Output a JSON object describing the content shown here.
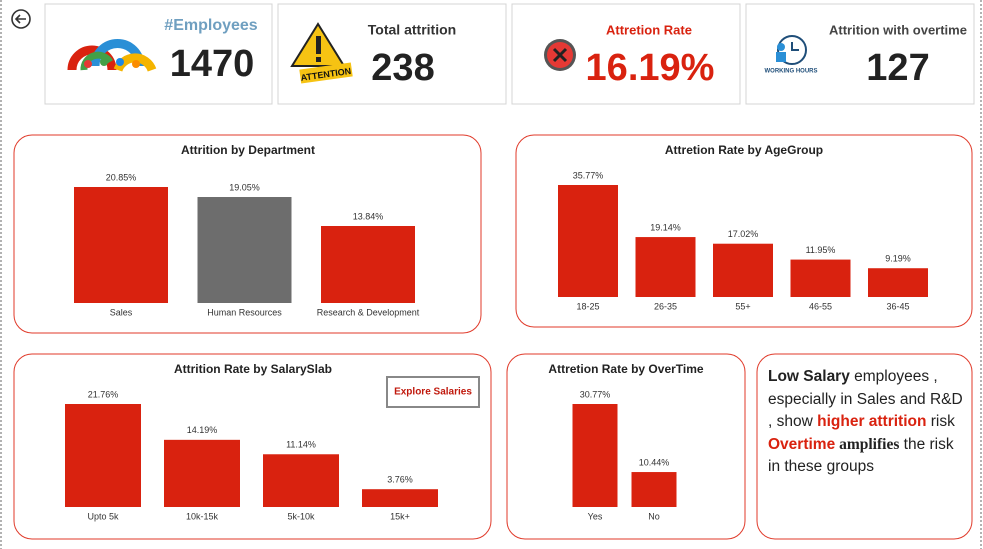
{
  "kpis": [
    {
      "title": "#Employees",
      "value": "1470"
    },
    {
      "title": "Total attrition",
      "value": "238",
      "icon_label": "ATTENTION"
    },
    {
      "title": "Attretion Rate",
      "value": "16.19%"
    },
    {
      "title": "Attrition with overtime",
      "value": "127",
      "icon_label": "WORKING HOURS"
    }
  ],
  "chart_data": [
    {
      "type": "bar",
      "title": "Attrition by Department",
      "categories": [
        "Sales",
        "Human Resources",
        "Research & Development"
      ],
      "values": [
        20.85,
        19.05,
        13.84
      ],
      "value_labels": [
        "20.85%",
        "19.05%",
        "13.84%"
      ],
      "colors": [
        "#d9220f",
        "#6d6d6d",
        "#d9220f"
      ]
    },
    {
      "type": "bar",
      "title": "Attretion Rate by AgeGroup",
      "categories": [
        "18-25",
        "26-35",
        "55+",
        "46-55",
        "36-45"
      ],
      "values": [
        35.77,
        19.14,
        17.02,
        11.95,
        9.19
      ],
      "value_labels": [
        "35.77%",
        "19.14%",
        "17.02%",
        "11.95%",
        "9.19%"
      ],
      "color": "#d9220f"
    },
    {
      "type": "bar",
      "title": "Attrition Rate by SalarySlab",
      "categories": [
        "Upto 5k",
        "10k-15k",
        "5k-10k",
        "15k+"
      ],
      "values": [
        21.76,
        14.19,
        11.14,
        3.76
      ],
      "value_labels": [
        "21.76%",
        "14.19%",
        "11.14%",
        "3.76%"
      ],
      "color": "#d9220f",
      "button": "Explore Salaries"
    },
    {
      "type": "bar",
      "title": "Attretion Rate by OverTime",
      "categories": [
        "Yes",
        "No"
      ],
      "values": [
        30.77,
        10.44
      ],
      "value_labels": [
        "30.77%",
        "10.44%"
      ],
      "color": "#d9220f"
    }
  ],
  "insight": [
    {
      "text": "Low Salary",
      "style": "bold"
    },
    {
      "text": " employees , especially in Sales and R&D , show ",
      "style": "normal"
    },
    {
      "text": "higher attrition",
      "style": "red-bold"
    },
    {
      "text": " risk",
      "style": "normal"
    },
    {
      "text": "Overtime",
      "style": "red-bold",
      "newline": true
    },
    {
      "text": " amplifies",
      "style": "serif-bold"
    },
    {
      "text": " the risk in these groups",
      "style": "normal"
    }
  ]
}
